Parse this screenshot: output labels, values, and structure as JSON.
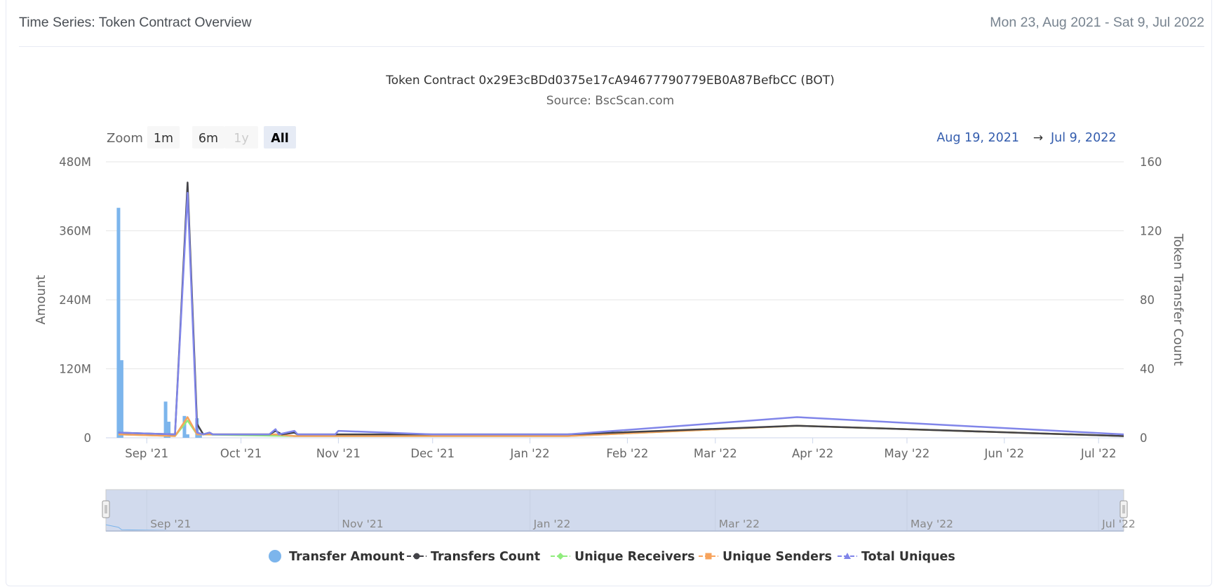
{
  "header": {
    "title": "Time Series: Token Contract Overview",
    "date_range": "Mon 23, Aug 2021 - Sat 9, Jul 2022"
  },
  "chart_data": {
    "type": "line",
    "title": "Token Contract 0x29E3cBDd0375e17cA94677790779EB0A87BefbCC (BOT)",
    "subtitle": "Source: BscScan.com",
    "zoom": {
      "label": "Zoom",
      "buttons": [
        "1m",
        "6m",
        "1y",
        "All"
      ],
      "selected": "All",
      "disabled": [
        "1y"
      ]
    },
    "range_selector": {
      "from": "Aug 19, 2021",
      "arrow": "→",
      "to": "Jul 9, 2022"
    },
    "x_start": "2021-08-19",
    "x_end": "2022-07-09",
    "x_ticks": [
      "Sep '21",
      "Oct '21",
      "Nov '21",
      "Dec '21",
      "Jan '22",
      "Feb '22",
      "Mar '22",
      "Apr '22",
      "May '22",
      "Jun '22",
      "Jul '22"
    ],
    "x_tick_dates": [
      "2021-09-01",
      "2021-10-01",
      "2021-11-01",
      "2021-12-01",
      "2022-01-01",
      "2022-02-01",
      "2022-03-01",
      "2022-04-01",
      "2022-05-01",
      "2022-06-01",
      "2022-07-01"
    ],
    "y_left": {
      "label": "Amount",
      "ticks": [
        "0",
        "120M",
        "240M",
        "360M",
        "480M"
      ],
      "range": [
        0,
        480000000
      ]
    },
    "y_right": {
      "label": "Token Transfer Count",
      "ticks": [
        "0",
        "40",
        "80",
        "120",
        "160"
      ],
      "range": [
        0,
        160
      ]
    },
    "grid": true,
    "legend_position": "bottom",
    "navigator": {
      "ticks": [
        "Sep '21",
        "Nov '21",
        "Jan '22",
        "Mar '22",
        "May '22",
        "Jul '22"
      ],
      "tick_dates": [
        "2021-09-01",
        "2021-11-01",
        "2022-01-01",
        "2022-03-01",
        "2022-05-01",
        "2022-07-01"
      ]
    },
    "series": [
      {
        "name": "Transfer Amount",
        "kind": "column",
        "axis": "left",
        "color": "#7cb5ec",
        "points": [
          [
            "2021-08-23",
            400000000
          ],
          [
            "2021-08-24",
            135000000
          ],
          [
            "2021-09-07",
            63000000
          ],
          [
            "2021-09-08",
            28000000
          ],
          [
            "2021-09-13",
            38000000
          ],
          [
            "2021-09-14",
            6000000
          ],
          [
            "2021-09-17",
            34000000
          ],
          [
            "2021-09-18",
            8000000
          ]
        ]
      },
      {
        "name": "Transfers Count",
        "kind": "line",
        "axis": "right",
        "color": "#434348",
        "marker": "circle",
        "points": [
          [
            "2021-08-23",
            3
          ],
          [
            "2021-09-10",
            2
          ],
          [
            "2021-09-14",
            148
          ],
          [
            "2021-09-17",
            8
          ],
          [
            "2021-09-19",
            2
          ],
          [
            "2021-09-21",
            3
          ],
          [
            "2021-09-22",
            2
          ],
          [
            "2021-10-10",
            2
          ],
          [
            "2021-10-12",
            4
          ],
          [
            "2021-10-14",
            2
          ],
          [
            "2021-10-18",
            3
          ],
          [
            "2021-10-19",
            2
          ],
          [
            "2021-10-31",
            2
          ],
          [
            "2021-11-01",
            2
          ],
          [
            "2021-12-01",
            2
          ],
          [
            "2022-01-13",
            2
          ],
          [
            "2022-03-27",
            7
          ],
          [
            "2022-07-09",
            1
          ]
        ]
      },
      {
        "name": "Unique Receivers",
        "kind": "line",
        "axis": "right",
        "color": "#90ed7d",
        "marker": "diamond",
        "points": [
          [
            "2021-08-23",
            2
          ],
          [
            "2021-09-10",
            1
          ],
          [
            "2021-09-14",
            10
          ],
          [
            "2021-09-17",
            2
          ],
          [
            "2021-10-18",
            1
          ],
          [
            "2021-11-01",
            1
          ],
          [
            "2022-01-13",
            1
          ],
          [
            "2022-03-27",
            7
          ],
          [
            "2022-07-09",
            1
          ]
        ]
      },
      {
        "name": "Unique Senders",
        "kind": "line",
        "axis": "right",
        "color": "#f7a35c",
        "marker": "square",
        "points": [
          [
            "2021-08-23",
            2
          ],
          [
            "2021-09-10",
            1
          ],
          [
            "2021-09-14",
            12
          ],
          [
            "2021-09-17",
            2
          ],
          [
            "2021-10-12",
            2
          ],
          [
            "2021-10-18",
            1
          ],
          [
            "2021-11-01",
            1
          ],
          [
            "2022-01-13",
            1
          ],
          [
            "2022-03-27",
            7
          ],
          [
            "2022-07-09",
            1
          ]
        ]
      },
      {
        "name": "Total Uniques",
        "kind": "line",
        "axis": "right",
        "color": "#8085e9",
        "marker": "triangle",
        "points": [
          [
            "2021-08-23",
            3
          ],
          [
            "2021-09-10",
            2
          ],
          [
            "2021-09-14",
            142
          ],
          [
            "2021-09-17",
            3
          ],
          [
            "2021-09-19",
            2
          ],
          [
            "2021-09-21",
            3
          ],
          [
            "2021-09-22",
            2
          ],
          [
            "2021-10-10",
            2
          ],
          [
            "2021-10-12",
            5
          ],
          [
            "2021-10-13",
            2
          ],
          [
            "2021-10-18",
            4
          ],
          [
            "2021-10-19",
            2
          ],
          [
            "2021-10-31",
            2
          ],
          [
            "2021-11-01",
            4
          ],
          [
            "2021-12-01",
            2
          ],
          [
            "2022-01-13",
            2
          ],
          [
            "2022-03-27",
            12
          ],
          [
            "2022-07-09",
            2
          ]
        ]
      }
    ]
  }
}
